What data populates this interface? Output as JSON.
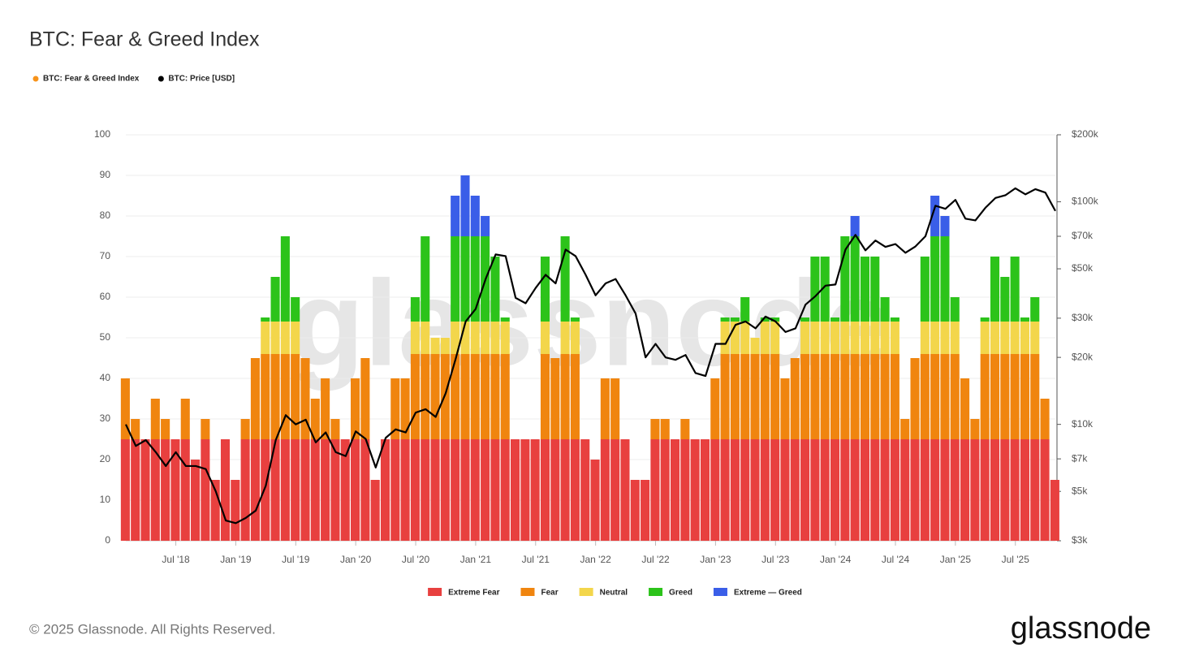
{
  "chart_data": {
    "type": "bar-line",
    "title": "BTC: Fear & Greed Index",
    "watermark": "glassnode",
    "copyright": "© 2025 Glassnode. All Rights Reserved.",
    "brand": "glassnode",
    "x": [
      "2018-02",
      "2018-03",
      "2018-04",
      "2018-05",
      "2018-06",
      "2018-07",
      "2018-08",
      "2018-09",
      "2018-10",
      "2018-11",
      "2018-12",
      "2019-01",
      "2019-02",
      "2019-03",
      "2019-04",
      "2019-05",
      "2019-06",
      "2019-07",
      "2019-08",
      "2019-09",
      "2019-10",
      "2019-11",
      "2019-12",
      "2020-01",
      "2020-02",
      "2020-03",
      "2020-04",
      "2020-05",
      "2020-06",
      "2020-07",
      "2020-08",
      "2020-09",
      "2020-10",
      "2020-11",
      "2020-12",
      "2021-01",
      "2021-02",
      "2021-03",
      "2021-04",
      "2021-05",
      "2021-06",
      "2021-07",
      "2021-08",
      "2021-09",
      "2021-10",
      "2021-11",
      "2021-12",
      "2022-01",
      "2022-02",
      "2022-03",
      "2022-04",
      "2022-05",
      "2022-06",
      "2022-07",
      "2022-08",
      "2022-09",
      "2022-10",
      "2022-11",
      "2022-12",
      "2023-01",
      "2023-02",
      "2023-03",
      "2023-04",
      "2023-05",
      "2023-06",
      "2023-07",
      "2023-08",
      "2023-09",
      "2023-10",
      "2023-11",
      "2023-12",
      "2024-01",
      "2024-02",
      "2024-03",
      "2024-04",
      "2024-05",
      "2024-06",
      "2024-07",
      "2024-08",
      "2024-09",
      "2024-10",
      "2024-11",
      "2024-12",
      "2025-01",
      "2025-02",
      "2025-03",
      "2025-04",
      "2025-05",
      "2025-06",
      "2025-07",
      "2025-08",
      "2025-09",
      "2025-10",
      "2025-11"
    ],
    "series": [
      {
        "name": "BTC: Fear & Greed Index",
        "color": "#f7931a",
        "values": [
          40,
          30,
          25,
          35,
          30,
          25,
          35,
          20,
          30,
          15,
          25,
          15,
          30,
          45,
          55,
          65,
          75,
          60,
          45,
          35,
          40,
          30,
          25,
          40,
          45,
          15,
          25,
          40,
          40,
          60,
          75,
          50,
          50,
          85,
          90,
          85,
          80,
          70,
          55,
          25,
          25,
          25,
          70,
          45,
          75,
          55,
          25,
          20,
          40,
          40,
          25,
          15,
          15,
          30,
          30,
          25,
          30,
          25,
          25,
          40,
          55,
          55,
          60,
          50,
          55,
          55,
          40,
          45,
          55,
          70,
          70,
          55,
          75,
          80,
          70,
          70,
          60,
          55,
          30,
          45,
          70,
          85,
          80,
          60,
          40,
          30,
          55,
          70,
          65,
          70,
          55,
          60,
          35,
          15
        ]
      },
      {
        "name": "BTC: Price [USD]",
        "color": "#000000",
        "axis": "y2",
        "values": [
          10000,
          8000,
          8500,
          7500,
          6500,
          7500,
          6500,
          6500,
          6300,
          5000,
          3700,
          3600,
          3800,
          4100,
          5300,
          8500,
          11000,
          10000,
          10500,
          8300,
          9200,
          7500,
          7200,
          9300,
          8600,
          6400,
          8700,
          9500,
          9200,
          11300,
          11700,
          10800,
          13800,
          19700,
          29000,
          33000,
          45000,
          58000,
          57000,
          37000,
          35000,
          41000,
          47000,
          43000,
          61000,
          57000,
          47000,
          38000,
          43000,
          45000,
          38000,
          31500,
          20000,
          23000,
          20000,
          19500,
          20500,
          17000,
          16500,
          23000,
          23000,
          28000,
          29000,
          27000,
          30500,
          29000,
          26000,
          27000,
          34500,
          37700,
          42000,
          42500,
          61000,
          71000,
          60500,
          67000,
          62700,
          64600,
          59000,
          63000,
          70000,
          96000,
          93000,
          102000,
          84000,
          82500,
          94000,
          104000,
          107000,
          115000,
          108000,
          114000,
          110000,
          91000
        ]
      }
    ],
    "bands": [
      {
        "name": "Extreme Fear",
        "color": "#e8403f",
        "from": 0
      },
      {
        "name": "Fear",
        "color": "#f0850f",
        "from": 25
      },
      {
        "name": "Neutral",
        "color": "#f3d64b",
        "from": 46
      },
      {
        "name": "Greed",
        "color": "#2cc31a",
        "from": 54
      },
      {
        "name": "Extreme — Greed",
        "color": "#3a5ee8",
        "from": 75
      }
    ],
    "xlim": [
      "2018-02",
      "2025-11"
    ],
    "xticks": [
      {
        "value": "2018-07",
        "label": "Jul '18"
      },
      {
        "value": "2019-01",
        "label": "Jan '19"
      },
      {
        "value": "2019-07",
        "label": "Jul '19"
      },
      {
        "value": "2020-01",
        "label": "Jan '20"
      },
      {
        "value": "2020-07",
        "label": "Jul '20"
      },
      {
        "value": "2021-01",
        "label": "Jan '21"
      },
      {
        "value": "2021-07",
        "label": "Jul '21"
      },
      {
        "value": "2022-01",
        "label": "Jan '22"
      },
      {
        "value": "2022-07",
        "label": "Jul '22"
      },
      {
        "value": "2023-01",
        "label": "Jan '23"
      },
      {
        "value": "2023-07",
        "label": "Jul '23"
      },
      {
        "value": "2024-01",
        "label": "Jan '24"
      },
      {
        "value": "2024-07",
        "label": "Jul '24"
      },
      {
        "value": "2025-01",
        "label": "Jan '25"
      },
      {
        "value": "2025-07",
        "label": "Jul '25"
      }
    ],
    "ylim": [
      0,
      100
    ],
    "yticks": [
      0,
      10,
      20,
      30,
      40,
      50,
      60,
      70,
      80,
      90,
      100
    ],
    "y2lim": [
      3000,
      200000
    ],
    "y2log": true,
    "y2ticks": [
      {
        "value": 3000,
        "label": "$3k"
      },
      {
        "value": 5000,
        "label": "$5k"
      },
      {
        "value": 7000,
        "label": "$7k"
      },
      {
        "value": 10000,
        "label": "$10k"
      },
      {
        "value": 20000,
        "label": "$20k"
      },
      {
        "value": 30000,
        "label": "$30k"
      },
      {
        "value": 50000,
        "label": "$50k"
      },
      {
        "value": 70000,
        "label": "$70k"
      },
      {
        "value": 100000,
        "label": "$100k"
      },
      {
        "value": 200000,
        "label": "$200k"
      }
    ],
    "grid": true
  }
}
